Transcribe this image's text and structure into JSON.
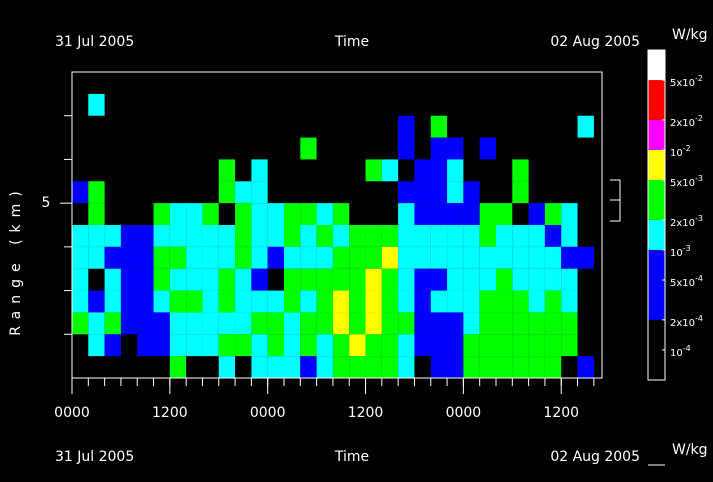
{
  "chart_data": {
    "type": "heatmap",
    "date_start": "31 Jul 2005",
    "date_end": "02 Aug 2005",
    "xlabel": "Time",
    "ylabel": "Range (km)",
    "units": "W/kg",
    "xlim": [
      0,
      65
    ],
    "ylim": [
      1,
      8
    ],
    "xticks": [
      {
        "value": 0,
        "label": "0000"
      },
      {
        "value": 12,
        "label": "1200"
      },
      {
        "value": 24,
        "label": "0000"
      },
      {
        "value": 36,
        "label": "1200"
      },
      {
        "value": 48,
        "label": "0000"
      },
      {
        "value": 60,
        "label": "1200"
      }
    ],
    "xminor_ticks": [
      0,
      2,
      4,
      6,
      8,
      10,
      12,
      14,
      16,
      18,
      20,
      22,
      24,
      26,
      28,
      30,
      32,
      34,
      36,
      38,
      40,
      42,
      44,
      46,
      48,
      50,
      52,
      54,
      56,
      58,
      60,
      62,
      64
    ],
    "yticks": [
      5
    ],
    "yminor_ticks": [
      2,
      3,
      4,
      6,
      7
    ],
    "x": [
      0,
      2,
      4,
      6,
      8,
      10,
      12,
      14,
      16,
      18,
      20,
      22,
      24,
      26,
      28,
      30,
      32,
      34,
      36,
      38,
      40,
      42,
      44,
      46,
      48,
      50,
      52,
      54,
      56,
      58,
      60,
      62
    ],
    "y": [
      7.5,
      7,
      6.5,
      6,
      5.5,
      5,
      4.5,
      4,
      3.5,
      3,
      2.5,
      2,
      1.5,
      1
    ],
    "z": [
      [
        null,
        null,
        null,
        null,
        null,
        null,
        null,
        null,
        null,
        null,
        null,
        null,
        null,
        null,
        null,
        null,
        null,
        null,
        null,
        null,
        null,
        null,
        null,
        null,
        null,
        null,
        null,
        null,
        null,
        null,
        null,
        null
      ],
      [
        null,
        0.0015,
        null,
        null,
        null,
        null,
        null,
        null,
        null,
        null,
        null,
        null,
        null,
        null,
        null,
        null,
        null,
        null,
        null,
        null,
        null,
        null,
        null,
        null,
        null,
        null,
        null,
        null,
        null,
        null,
        null,
        null
      ],
      [
        null,
        null,
        null,
        null,
        null,
        null,
        null,
        null,
        null,
        null,
        null,
        null,
        null,
        null,
        null,
        null,
        null,
        null,
        null,
        null,
        0.0005,
        null,
        0.003,
        null,
        null,
        null,
        null,
        null,
        null,
        null,
        null,
        0.0015
      ],
      [
        null,
        null,
        null,
        null,
        null,
        null,
        null,
        null,
        null,
        null,
        null,
        null,
        null,
        null,
        0.003,
        null,
        null,
        null,
        null,
        null,
        0.0005,
        null,
        0.0005,
        0.0005,
        null,
        0.0005,
        null,
        null,
        null,
        null,
        null,
        null
      ],
      [
        null,
        null,
        null,
        null,
        null,
        null,
        null,
        null,
        null,
        0.003,
        null,
        0.0015,
        null,
        null,
        null,
        null,
        null,
        null,
        0.003,
        0.0015,
        null,
        0.0005,
        0.0005,
        0.0015,
        null,
        null,
        null,
        0.003,
        null,
        null,
        null,
        null
      ],
      [
        0.0005,
        0.003,
        null,
        null,
        null,
        null,
        null,
        null,
        null,
        0.003,
        0.0015,
        0.0015,
        null,
        null,
        null,
        null,
        null,
        null,
        null,
        null,
        0.0005,
        0.0005,
        0.0005,
        0.0015,
        0.0005,
        null,
        null,
        0.003,
        null,
        null,
        null,
        null
      ],
      [
        null,
        0.003,
        null,
        null,
        null,
        0.003,
        0.0015,
        0.0015,
        0.003,
        null,
        0.003,
        0.0015,
        0.0015,
        0.003,
        0.003,
        0.0015,
        0.003,
        null,
        null,
        null,
        0.0015,
        0.0005,
        0.0005,
        0.0005,
        0.0005,
        0.003,
        0.003,
        null,
        0.0005,
        0.003,
        0.0015,
        null
      ],
      [
        0.0015,
        0.0015,
        0.0015,
        0.0005,
        0.0005,
        0.0015,
        0.0015,
        0.0015,
        0.0015,
        0.0015,
        0.003,
        0.0015,
        0.0015,
        0.003,
        0.0015,
        0.003,
        0.0015,
        0.003,
        0.003,
        0.003,
        0.0015,
        0.0015,
        0.0015,
        0.0015,
        0.0015,
        0.003,
        0.0015,
        0.0015,
        0.0015,
        0.0005,
        0.0015,
        null
      ],
      [
        0.0015,
        0.0015,
        0.0005,
        0.0005,
        0.0005,
        0.003,
        0.003,
        0.0015,
        0.0015,
        0.0015,
        0.003,
        0.0015,
        0.0005,
        0.0015,
        0.0015,
        0.0015,
        0.003,
        0.003,
        0.003,
        0.007,
        0.0015,
        0.0015,
        0.0015,
        0.0015,
        0.0015,
        0.0015,
        0.0015,
        0.0015,
        0.0015,
        0.0015,
        0.0005,
        0.0005
      ],
      [
        0.0015,
        null,
        0.0015,
        0.0005,
        0.0005,
        0.003,
        0.0015,
        0.0015,
        0.0015,
        0.003,
        0.0015,
        0.0005,
        null,
        0.003,
        0.003,
        0.003,
        0.003,
        0.003,
        0.007,
        0.003,
        0.0015,
        0.0005,
        0.0005,
        0.0015,
        0.0015,
        0.0015,
        0.003,
        0.0015,
        0.0015,
        0.0015,
        0.0015,
        null
      ],
      [
        0.0015,
        0.0005,
        0.0015,
        0.0005,
        0.0005,
        0.0015,
        0.003,
        0.003,
        0.0015,
        0.003,
        0.0015,
        0.0015,
        0.0015,
        0.003,
        0.0015,
        0.003,
        0.007,
        0.003,
        0.007,
        0.003,
        0.0015,
        0.0005,
        0.0015,
        0.0015,
        0.0015,
        0.003,
        0.003,
        0.003,
        0.0015,
        0.003,
        0.0015,
        null
      ],
      [
        0.003,
        0.0015,
        0.003,
        0.0005,
        0.0005,
        0.0005,
        0.0015,
        0.0015,
        0.0015,
        0.0015,
        0.0015,
        0.003,
        0.003,
        0.0015,
        0.003,
        0.003,
        0.007,
        0.003,
        0.007,
        0.003,
        0.003,
        0.0005,
        0.0005,
        0.0005,
        0.0015,
        0.003,
        0.003,
        0.003,
        0.003,
        0.003,
        0.003,
        null
      ],
      [
        null,
        0.0015,
        0.0005,
        null,
        0.0005,
        0.0005,
        0.0015,
        0.0015,
        0.0015,
        0.003,
        0.003,
        0.0015,
        0.003,
        0.0015,
        0.003,
        0.0015,
        0.003,
        0.007,
        0.003,
        0.003,
        0.0015,
        0.0005,
        0.0005,
        0.0005,
        0.003,
        0.003,
        0.003,
        0.003,
        0.003,
        0.003,
        0.003,
        null
      ],
      [
        null,
        null,
        null,
        null,
        null,
        null,
        0.003,
        null,
        null,
        0.0015,
        null,
        0.0015,
        0.0015,
        0.0015,
        0.0005,
        0.0015,
        0.003,
        0.003,
        0.003,
        0.003,
        0.0015,
        null,
        0.0005,
        0.0005,
        0.003,
        0.003,
        0.003,
        0.003,
        0.003,
        0.003,
        null,
        0.0005
      ]
    ],
    "clim": [
      5e-05,
      0.1
    ],
    "color_bounds": [
      0.0002,
      0.001,
      0.002,
      0.005,
      0.01,
      0.02,
      0.05
    ],
    "colors": [
      "#000000",
      "#0000ff",
      "#00ffff",
      "#00ff00",
      "#ffff00",
      "#ff00ff",
      "#ff0000",
      "#ffffff"
    ],
    "cticks": [
      {
        "value": 0.0001,
        "label": "10",
        "exponent": "-4"
      },
      {
        "value": 0.0002,
        "label": "2x10",
        "exponent": "-4"
      },
      {
        "value": 0.0005,
        "label": "5x10",
        "exponent": "-4"
      },
      {
        "value": 0.001,
        "label": "10",
        "exponent": "-3"
      },
      {
        "value": 0.002,
        "label": "2x10",
        "exponent": "-3"
      },
      {
        "value": 0.005,
        "label": "5x10",
        "exponent": "-3"
      },
      {
        "value": 0.01,
        "label": "10",
        "exponent": "-2"
      },
      {
        "value": 0.02,
        "label": "2x10",
        "exponent": "-2"
      },
      {
        "value": 0.05,
        "label": "5x10",
        "exponent": "-2"
      }
    ]
  }
}
